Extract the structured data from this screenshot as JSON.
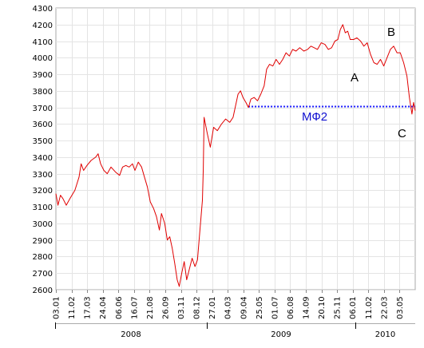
{
  "chart_data": {
    "type": "line",
    "title": "",
    "xlabel": "",
    "ylabel": "",
    "ylim": [
      2600,
      4300
    ],
    "y_ticks": [
      2600,
      2700,
      2800,
      2900,
      3000,
      3100,
      3200,
      3300,
      3400,
      3500,
      3600,
      3700,
      3800,
      3900,
      4000,
      4100,
      4200,
      4300
    ],
    "grid": true,
    "line_color": "#e00000",
    "x_tick_labels": [
      "03.01",
      "11.02",
      "17.03",
      "24.04",
      "06.06",
      "16.07",
      "21.08",
      "26.09",
      "03.11",
      "08.12",
      "27.01",
      "04.03",
      "09.04",
      "25.05",
      "01.07",
      "06.08",
      "14.09",
      "20.10",
      "25.11",
      "06.01",
      "11.02",
      "22.03",
      "03.05"
    ],
    "years": [
      "2008",
      "2009",
      "2010"
    ],
    "series": [
      {
        "color": "#e00000",
        "points": [
          [
            "2008-01-03",
            3180
          ],
          [
            "2008-01-08",
            3110
          ],
          [
            "2008-01-14",
            3170
          ],
          [
            "2008-01-20",
            3150
          ],
          [
            "2008-01-28",
            3110
          ],
          [
            "2008-02-06",
            3150
          ],
          [
            "2008-02-18",
            3200
          ],
          [
            "2008-02-28",
            3280
          ],
          [
            "2008-03-04",
            3360
          ],
          [
            "2008-03-10",
            3320
          ],
          [
            "2008-03-18",
            3350
          ],
          [
            "2008-03-28",
            3380
          ],
          [
            "2008-04-08",
            3400
          ],
          [
            "2008-04-14",
            3420
          ],
          [
            "2008-04-20",
            3360
          ],
          [
            "2008-04-28",
            3320
          ],
          [
            "2008-05-06",
            3300
          ],
          [
            "2008-05-15",
            3340
          ],
          [
            "2008-05-26",
            3310
          ],
          [
            "2008-06-05",
            3290
          ],
          [
            "2008-06-12",
            3340
          ],
          [
            "2008-06-20",
            3350
          ],
          [
            "2008-06-28",
            3340
          ],
          [
            "2008-07-06",
            3360
          ],
          [
            "2008-07-12",
            3320
          ],
          [
            "2008-07-20",
            3370
          ],
          [
            "2008-07-28",
            3340
          ],
          [
            "2008-08-04",
            3280
          ],
          [
            "2008-08-11",
            3220
          ],
          [
            "2008-08-18",
            3130
          ],
          [
            "2008-08-26",
            3090
          ],
          [
            "2008-09-02",
            3040
          ],
          [
            "2008-09-09",
            2960
          ],
          [
            "2008-09-14",
            3060
          ],
          [
            "2008-09-22",
            3000
          ],
          [
            "2008-09-28",
            2900
          ],
          [
            "2008-10-04",
            2920
          ],
          [
            "2008-10-10",
            2850
          ],
          [
            "2008-10-16",
            2760
          ],
          [
            "2008-10-22",
            2660
          ],
          [
            "2008-10-27",
            2620
          ],
          [
            "2008-11-02",
            2700
          ],
          [
            "2008-11-08",
            2770
          ],
          [
            "2008-11-14",
            2660
          ],
          [
            "2008-11-20",
            2720
          ],
          [
            "2008-11-27",
            2790
          ],
          [
            "2008-12-04",
            2740
          ],
          [
            "2008-12-10",
            2780
          ],
          [
            "2008-12-16",
            2960
          ],
          [
            "2008-12-22",
            3140
          ],
          [
            "2008-12-24",
            3330
          ],
          [
            "2008-12-26",
            3640
          ],
          [
            "2009-01-03",
            3540
          ],
          [
            "2009-01-10",
            3460
          ],
          [
            "2009-01-18",
            3580
          ],
          [
            "2009-01-27",
            3560
          ],
          [
            "2009-02-06",
            3600
          ],
          [
            "2009-02-16",
            3630
          ],
          [
            "2009-02-26",
            3610
          ],
          [
            "2009-03-06",
            3640
          ],
          [
            "2009-03-12",
            3710
          ],
          [
            "2009-03-18",
            3780
          ],
          [
            "2009-03-24",
            3800
          ],
          [
            "2009-03-30",
            3760
          ],
          [
            "2009-04-06",
            3730
          ],
          [
            "2009-04-12",
            3700
          ],
          [
            "2009-04-18",
            3750
          ],
          [
            "2009-04-26",
            3760
          ],
          [
            "2009-05-04",
            3740
          ],
          [
            "2009-05-12",
            3780
          ],
          [
            "2009-05-20",
            3830
          ],
          [
            "2009-05-26",
            3930
          ],
          [
            "2009-06-02",
            3960
          ],
          [
            "2009-06-10",
            3950
          ],
          [
            "2009-06-18",
            3990
          ],
          [
            "2009-06-26",
            3960
          ],
          [
            "2009-07-04",
            3990
          ],
          [
            "2009-07-12",
            4030
          ],
          [
            "2009-07-20",
            4010
          ],
          [
            "2009-07-28",
            4050
          ],
          [
            "2009-08-05",
            4040
          ],
          [
            "2009-08-14",
            4060
          ],
          [
            "2009-08-24",
            4040
          ],
          [
            "2009-09-02",
            4050
          ],
          [
            "2009-09-10",
            4070
          ],
          [
            "2009-09-18",
            4060
          ],
          [
            "2009-09-26",
            4050
          ],
          [
            "2009-10-05",
            4090
          ],
          [
            "2009-10-14",
            4080
          ],
          [
            "2009-10-22",
            4050
          ],
          [
            "2009-10-30",
            4060
          ],
          [
            "2009-11-07",
            4100
          ],
          [
            "2009-11-14",
            4110
          ],
          [
            "2009-11-20",
            4170
          ],
          [
            "2009-11-26",
            4200
          ],
          [
            "2009-12-02",
            4150
          ],
          [
            "2009-12-08",
            4160
          ],
          [
            "2009-12-14",
            4110
          ],
          [
            "2009-12-22",
            4110
          ],
          [
            "2009-12-30",
            4120
          ],
          [
            "2010-01-08",
            4100
          ],
          [
            "2010-01-16",
            4070
          ],
          [
            "2010-01-24",
            4090
          ],
          [
            "2010-02-01",
            4020
          ],
          [
            "2010-02-09",
            3970
          ],
          [
            "2010-02-17",
            3960
          ],
          [
            "2010-02-25",
            3990
          ],
          [
            "2010-03-05",
            3950
          ],
          [
            "2010-03-13",
            4000
          ],
          [
            "2010-03-21",
            4050
          ],
          [
            "2010-03-29",
            4070
          ],
          [
            "2010-04-06",
            4030
          ],
          [
            "2010-04-14",
            4030
          ],
          [
            "2010-04-22",
            3970
          ],
          [
            "2010-04-30",
            3890
          ],
          [
            "2010-05-06",
            3760
          ],
          [
            "2010-05-12",
            3660
          ],
          [
            "2010-05-16",
            3730
          ],
          [
            "2010-05-20",
            3680
          ]
        ]
      }
    ],
    "annotations": {
      "level_label": "МФ2",
      "level_value": 3710,
      "level_from": "2009-04-12",
      "level_to": "2010-05-20",
      "point_a": "A",
      "point_b": "B",
      "point_c": "C"
    }
  }
}
